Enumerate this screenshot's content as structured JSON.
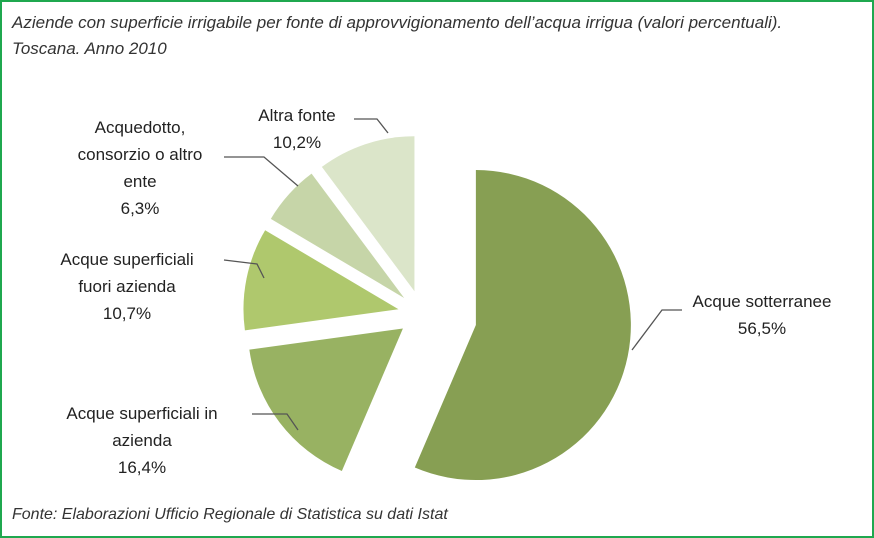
{
  "chart_data": {
    "type": "pie",
    "title": "Aziende con superficie irrigabile per fonte di approvvigionamento dell’acqua irrigua (valori percentuali). Toscana. Anno 2010",
    "source": "Fonte: Elaborazioni Ufficio Regionale di Statistica su dati Istat",
    "categories": [
      "Acque sotterranee",
      "Acque superficiali in azienda",
      "Acque superficiali fuori azienda",
      "Acquedotto, consorzio o altro ente",
      "Altra fonte"
    ],
    "values": [
      56.5,
      16.4,
      10.7,
      6.3,
      10.2
    ],
    "value_labels": [
      "56,5%",
      "16,4%",
      "10,7%",
      "6,3%",
      "10,2%"
    ],
    "colors": [
      "#879f53",
      "#98b262",
      "#afc86d",
      "#c6d5a8",
      "#dbe5c9"
    ]
  }
}
